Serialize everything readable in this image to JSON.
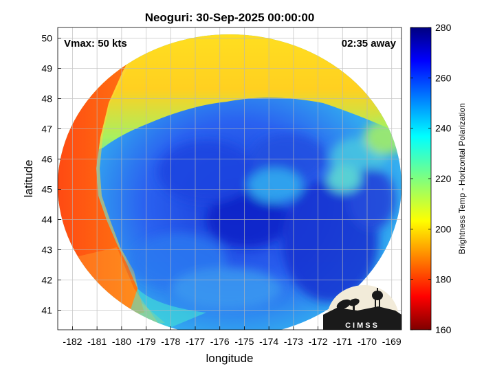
{
  "figure": {
    "title": "Neoguri: 30-Sep-2025 00:00:00",
    "vmax_label": "Vmax: 50 kts",
    "time_away_label": "02:35 away",
    "xlabel": "longitude",
    "ylabel": "latitude",
    "colorbar_label": "Brightness Temp - Horizontal Polarization",
    "logo_text": "CIMSS"
  },
  "axes": {
    "x_ticks": [
      "-182",
      "-181",
      "-180",
      "-179",
      "-178",
      "-177",
      "-176",
      "-175",
      "-174",
      "-173",
      "-172",
      "-171",
      "-170",
      "-169"
    ],
    "y_ticks": [
      "50",
      "49",
      "48",
      "47",
      "46",
      "45",
      "44",
      "43",
      "42",
      "41"
    ],
    "xlim": [
      -182.6,
      -168.6
    ],
    "ylim": [
      40.35,
      50.35
    ]
  },
  "colorbar": {
    "ticks": [
      "280",
      "260",
      "240",
      "220",
      "200",
      "180",
      "160"
    ],
    "range": [
      160,
      280
    ],
    "colors": [
      "#7f0000",
      "#ff0000",
      "#ff7f00",
      "#ffff00",
      "#7fff7f",
      "#00ffff",
      "#007fff",
      "#0000ff",
      "#00007f"
    ]
  }
}
